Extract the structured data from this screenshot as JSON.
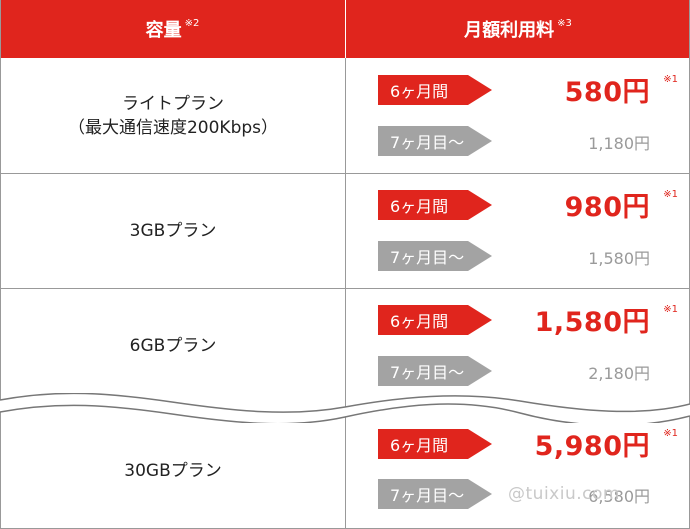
{
  "header": {
    "capacity_label": "容量",
    "capacity_note": "※2",
    "fee_label": "月額利用料",
    "fee_note": "※3"
  },
  "rows": [
    {
      "plan_line1": "ライトプラン",
      "plan_line2": "（最大通信速度200Kbps）",
      "first_label": "6ヶ月間",
      "first_price": "580円",
      "first_note": "※1",
      "after_label": "7ヶ月目～",
      "after_price": "1,180円"
    },
    {
      "plan_line1": "3GBプラン",
      "first_label": "6ヶ月間",
      "first_price": "980円",
      "first_note": "※1",
      "after_label": "7ヶ月目～",
      "after_price": "1,580円"
    },
    {
      "plan_line1": "6GBプラン",
      "first_label": "6ヶ月間",
      "first_price": "1,580円",
      "first_note": "※1",
      "after_label": "7ヶ月目～",
      "after_price": "2,180円"
    },
    {
      "plan_line1": "30GBプラン",
      "first_label": "6ヶ月間",
      "first_price": "5,980円",
      "first_note": "※1",
      "after_label": "7ヶ月目～",
      "after_price": "6,580円"
    }
  ],
  "watermark": "@tuixiu.com",
  "colors": {
    "accent": "#e0251d",
    "gray_tag": "#a3a3a3",
    "muted_price": "#9a9a9a"
  }
}
